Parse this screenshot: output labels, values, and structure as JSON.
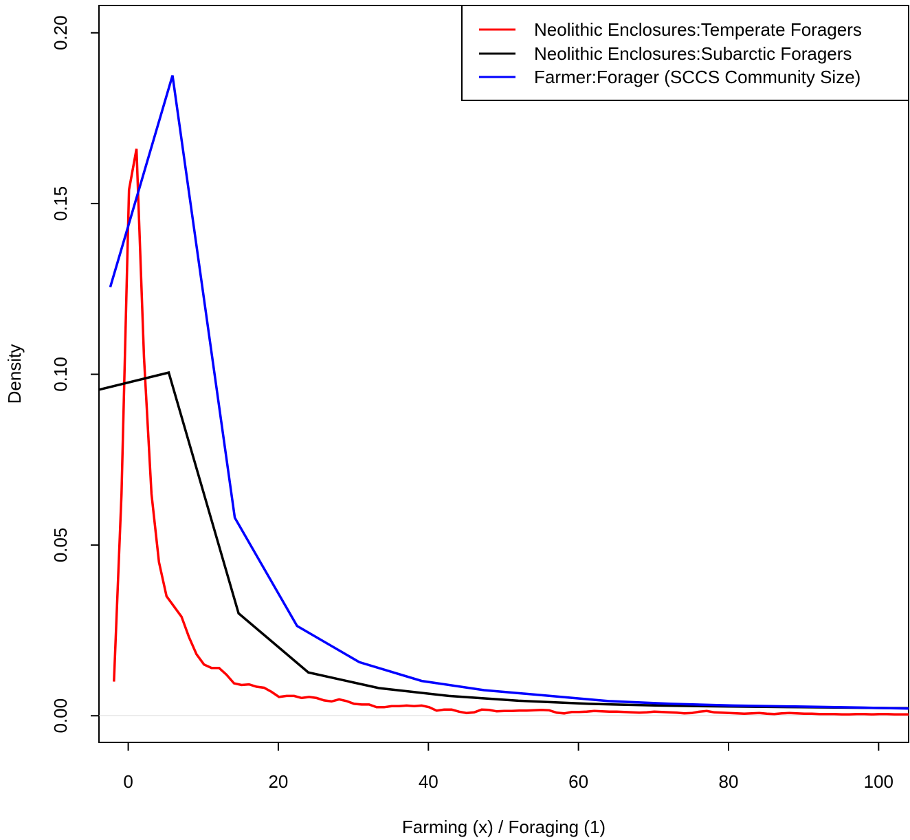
{
  "chart_data": {
    "type": "line",
    "xlabel": "Farming (x) / Foraging (1)",
    "ylabel": "Density",
    "xlim": [
      -3.9,
      104
    ],
    "ylim": [
      -0.0078,
      0.208
    ],
    "x_ticks": [
      0,
      20,
      40,
      60,
      80,
      100
    ],
    "x_tick_labels": [
      "0",
      "20",
      "40",
      "60",
      "80",
      "100"
    ],
    "y_ticks": [
      0.0,
      0.05,
      0.1,
      0.15,
      0.2
    ],
    "y_tick_labels": [
      "0.00",
      "0.05",
      "0.10",
      "0.15",
      "0.20"
    ],
    "grid": false,
    "legend_position": "top-right",
    "series": [
      {
        "name": "Neolithic Enclosures:Temperate Foragers",
        "color": "#ff0000",
        "x": [
          -1.9,
          -0.9,
          0.1,
          1.1,
          2.1,
          3.1,
          4.1,
          5.1,
          6.1,
          7.1,
          8.1,
          9.1,
          10.1,
          11.1,
          12.1,
          13.1,
          14.1,
          15.1,
          16.1,
          17.1,
          18.1,
          19.1,
          20.1,
          21.1,
          22.1,
          23.1,
          24.1,
          25.1,
          26.1,
          27.1,
          28.1,
          29.1,
          30.1,
          31.1,
          32.1,
          33.1,
          34.1,
          35.1,
          36.1,
          37.1,
          38.1,
          39.1,
          40.1,
          41.1,
          42.1,
          43.1,
          44.1,
          45.1,
          46.1,
          47.1,
          48.1,
          49.1,
          50.1,
          51.1,
          52.1,
          53.1,
          54.1,
          55.1,
          56.1,
          57.1,
          58.1,
          59.1,
          60.1,
          61.1,
          62.1,
          63.1,
          64.1,
          65.1,
          66.1,
          67.1,
          68.1,
          69.1,
          70.1,
          71.1,
          72.1,
          73.1,
          74.1,
          75.1,
          76.1,
          77.1,
          78.1,
          79.1,
          80.1,
          81.1,
          82.1,
          83.1,
          84.1,
          85.1,
          86.1,
          87.1,
          88.1,
          89.1,
          90.1,
          91.1,
          92.1,
          93.1,
          94.1,
          95.1,
          96.1,
          97.1,
          98.1,
          99.1,
          100.1,
          101.1,
          102.1,
          103.1,
          104.0
        ],
        "values": [
          0.01,
          0.065,
          0.154,
          0.166,
          0.105,
          0.065,
          0.045,
          0.035,
          0.032,
          0.029,
          0.023,
          0.018,
          0.015,
          0.014,
          0.014,
          0.012,
          0.0095,
          0.009,
          0.0092,
          0.0085,
          0.0082,
          0.007,
          0.0055,
          0.0058,
          0.0058,
          0.0052,
          0.0055,
          0.0052,
          0.0045,
          0.0042,
          0.0048,
          0.0043,
          0.0035,
          0.0033,
          0.0033,
          0.0025,
          0.0025,
          0.0028,
          0.0028,
          0.003,
          0.0028,
          0.003,
          0.0025,
          0.0015,
          0.0018,
          0.0018,
          0.0012,
          0.0008,
          0.001,
          0.0018,
          0.0017,
          0.0013,
          0.0014,
          0.0014,
          0.0015,
          0.0015,
          0.0016,
          0.0017,
          0.0016,
          0.0009,
          0.0007,
          0.0011,
          0.0011,
          0.0012,
          0.0014,
          0.0013,
          0.0012,
          0.0012,
          0.0011,
          0.001,
          0.0009,
          0.001,
          0.0012,
          0.0011,
          0.001,
          0.0009,
          0.0007,
          0.0008,
          0.0012,
          0.0014,
          0.001,
          0.0009,
          0.0008,
          0.0007,
          0.0006,
          0.0007,
          0.0008,
          0.0006,
          0.0005,
          0.0007,
          0.0008,
          0.0007,
          0.0006,
          0.0006,
          0.0005,
          0.0005,
          0.0005,
          0.0004,
          0.0004,
          0.0005,
          0.0005,
          0.0004,
          0.0005,
          0.0005,
          0.0004,
          0.0004,
          0.0004
        ]
      },
      {
        "name": "Neolithic Enclosures:Subarctic Foragers",
        "color": "#000000",
        "x": [
          -3.9,
          5.4,
          14.7,
          24.0,
          33.4,
          42.7,
          52.0,
          61.4,
          70.7,
          80.0,
          89.4,
          98.7,
          104.0
        ],
        "values": [
          0.0955,
          0.1005,
          0.03,
          0.0127,
          0.0081,
          0.0058,
          0.0044,
          0.0035,
          0.003,
          0.0027,
          0.0025,
          0.0023,
          0.0022
        ]
      },
      {
        "name": "Farmer:Forager (SCCS Community Size)",
        "color": "#0000ff",
        "x": [
          -2.4,
          5.9,
          14.2,
          22.5,
          30.8,
          39.1,
          47.4,
          55.7,
          64.0,
          72.3,
          80.6,
          88.9,
          97.2,
          104.0
        ],
        "values": [
          0.1255,
          0.1875,
          0.058,
          0.0263,
          0.0157,
          0.0102,
          0.0075,
          0.0059,
          0.0043,
          0.0035,
          0.003,
          0.0027,
          0.0024,
          0.0021
        ]
      }
    ]
  }
}
